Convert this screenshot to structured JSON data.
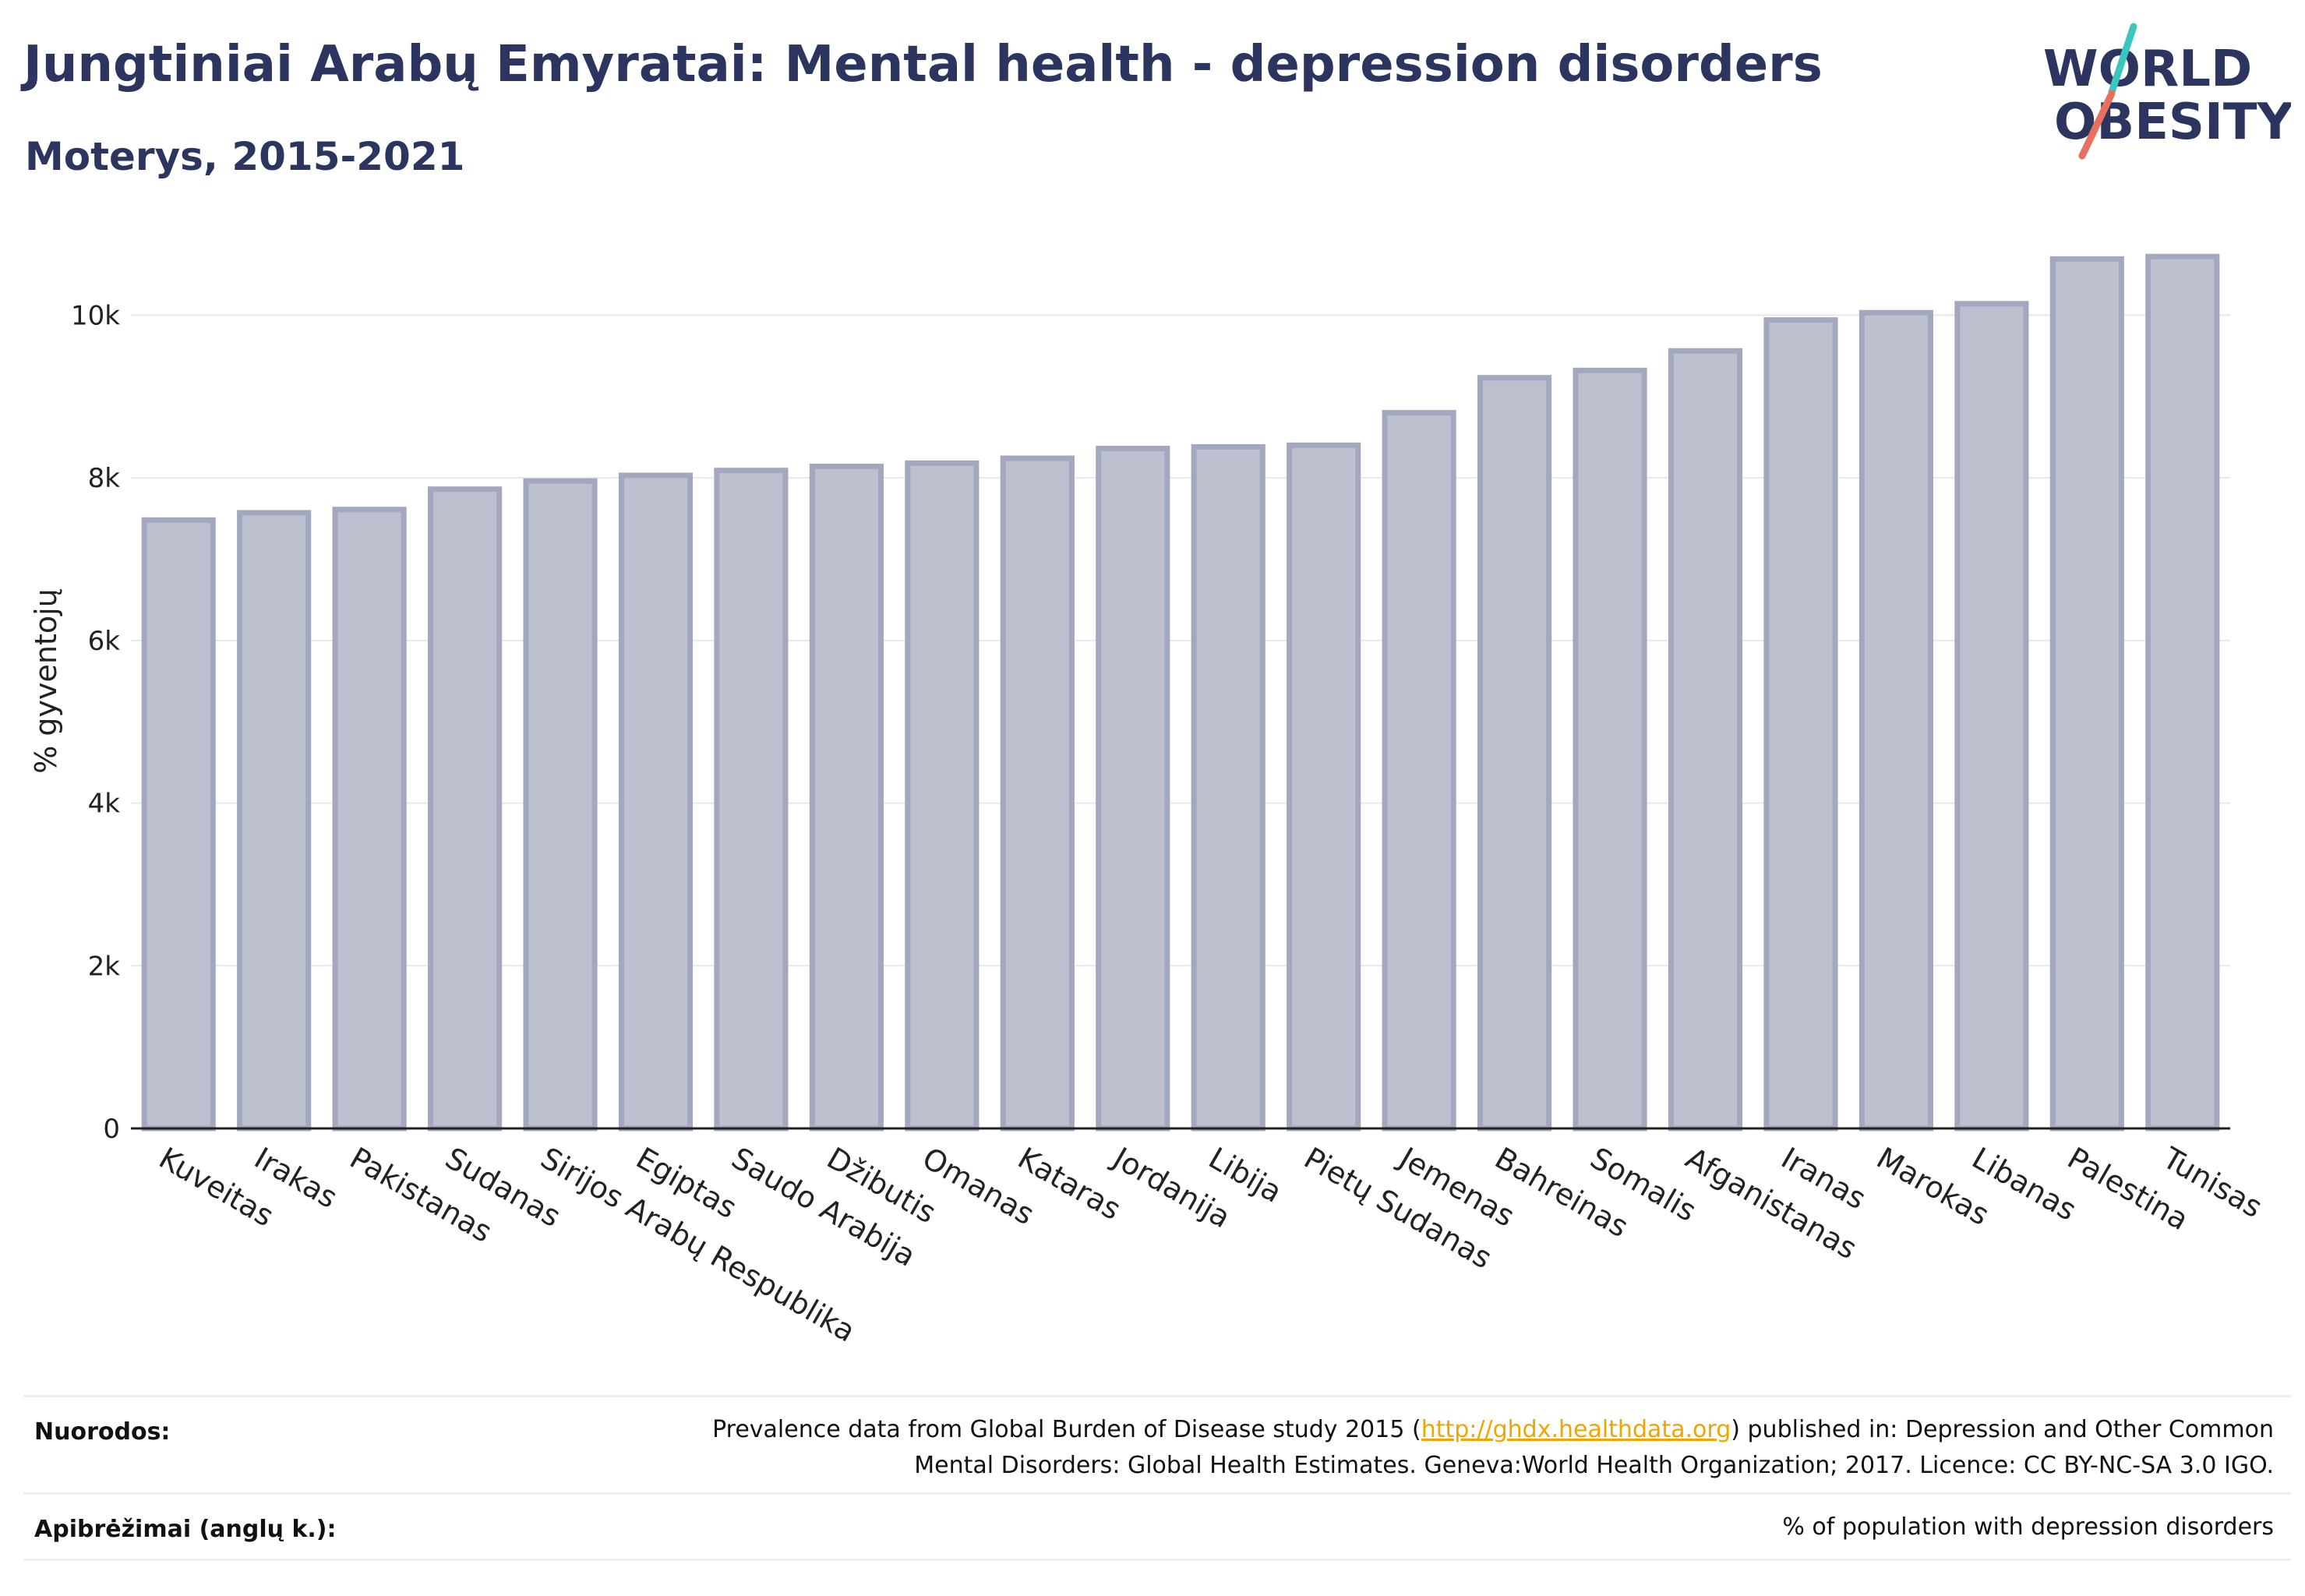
{
  "header": {
    "title": "Jungtiniai Arabų Emyratai: Mental health - depression disorders",
    "subtitle": "Moterys, 2015-2021"
  },
  "logo": {
    "line1": "WORLD",
    "line2": "OBESITY",
    "accent_teal": "#3cc6c0",
    "accent_coral": "#e8705f",
    "text_color": "#2b3560"
  },
  "chart_data": {
    "type": "bar",
    "ylabel": "% gyventojų",
    "xlabel": "",
    "ylim": [
      0,
      11000
    ],
    "yticks": [
      0,
      2000,
      4000,
      6000,
      8000,
      10000
    ],
    "ytick_labels": [
      "0",
      "2k",
      "4k",
      "6k",
      "8k",
      "10k"
    ],
    "grid": true,
    "categories": [
      "Kuveitas",
      "Irakas",
      "Pakistanas",
      "Sudanas",
      "Sirijos Arabų Respublika",
      "Egiptas",
      "Saudo Arabija",
      "Džibutis",
      "Omanas",
      "Kataras",
      "Jordanija",
      "Libija",
      "Pietų Sudanas",
      "Jemenas",
      "Bahreinas",
      "Somalis",
      "Afganistanas",
      "Iranas",
      "Marokas",
      "Libanas",
      "Palestina",
      "Tunisas"
    ],
    "values": [
      7480,
      7570,
      7610,
      7860,
      7960,
      8030,
      8090,
      8140,
      8180,
      8240,
      8360,
      8380,
      8400,
      8800,
      9230,
      9320,
      9560,
      9940,
      10030,
      10140,
      10690,
      10720
    ],
    "bar_fill": "#bdc0cf",
    "bar_stroke": "#a3a8bf"
  },
  "footer": {
    "sources_label": "Nuorodos:",
    "sources_text_before": "Prevalence data from Global Burden of Disease study 2015 (",
    "sources_link": "http://ghdx.healthdata.org",
    "sources_text_after": ") published in: Depression and Other Common",
    "sources_text_line2": "Mental Disorders: Global Health Estimates. Geneva:World Health Organization; 2017. Licence: CC BY-NC-SA 3.0 IGO.",
    "definitions_label": "Apibrėžimai (anglų k.):",
    "definitions_text": "% of population with depression disorders"
  }
}
